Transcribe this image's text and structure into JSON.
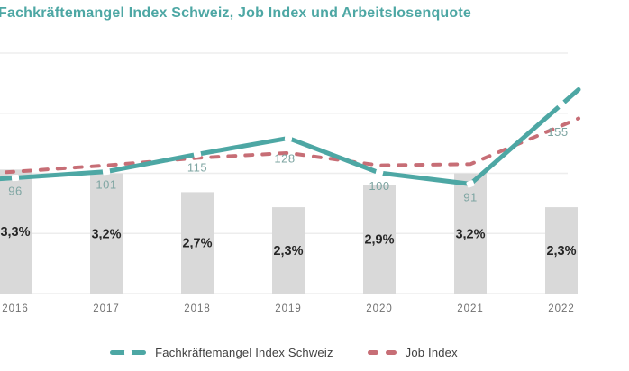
{
  "title": "Fachkräftemangel Index Schweiz, Job Index und Arbeitslosenquote",
  "accent_color": "#4da7a4",
  "chart_data": {
    "type": "combo-bar-line",
    "categories": [
      "2016",
      "2017",
      "2018",
      "2019",
      "2020",
      "2021",
      "2022"
    ],
    "series": [
      {
        "name": "Fachkräftemangel Index Schweiz",
        "type": "line",
        "style": "solid",
        "color": "#4da7a4",
        "values": [
          96,
          101,
          115,
          128,
          100,
          91,
          155
        ],
        "value_labels": [
          "96",
          "101",
          "115",
          "128",
          "100",
          "91",
          "155"
        ],
        "labels_visible": true
      },
      {
        "name": "Job Index",
        "type": "line",
        "style": "dashed",
        "color": "#c76e76",
        "values": [
          101,
          106,
          112,
          116,
          106,
          107,
          138
        ],
        "values_estimated": true,
        "labels_visible": false
      },
      {
        "name": "Arbeitslosenquote",
        "type": "bar",
        "color": "#d9d9d9",
        "values": [
          3.3,
          3.2,
          2.7,
          2.3,
          2.9,
          3.2,
          2.3
        ],
        "value_labels": [
          "3,3%",
          "3,2%",
          "2,7%",
          "2,3%",
          "2,9%",
          "3,2%",
          "2,3%"
        ],
        "labels_visible": true
      }
    ],
    "legend": [
      "Fachkräftemangel Index Schweiz",
      "Job Index"
    ],
    "grid": true,
    "gridline_count": 5,
    "legend_position": "bottom-center",
    "colors": {
      "gridline": "#ededed",
      "bar": "#d9d9d9",
      "bar_label": "#262626",
      "line_value_label": "#7ea5a2",
      "axis_label": "#707070"
    },
    "layout_hints": {
      "line_label_dy": [
        0,
        0,
        0,
        8,
        0,
        0,
        16
      ],
      "line_label_dx": [
        0,
        0,
        0,
        -4,
        0,
        0,
        -4
      ]
    }
  }
}
